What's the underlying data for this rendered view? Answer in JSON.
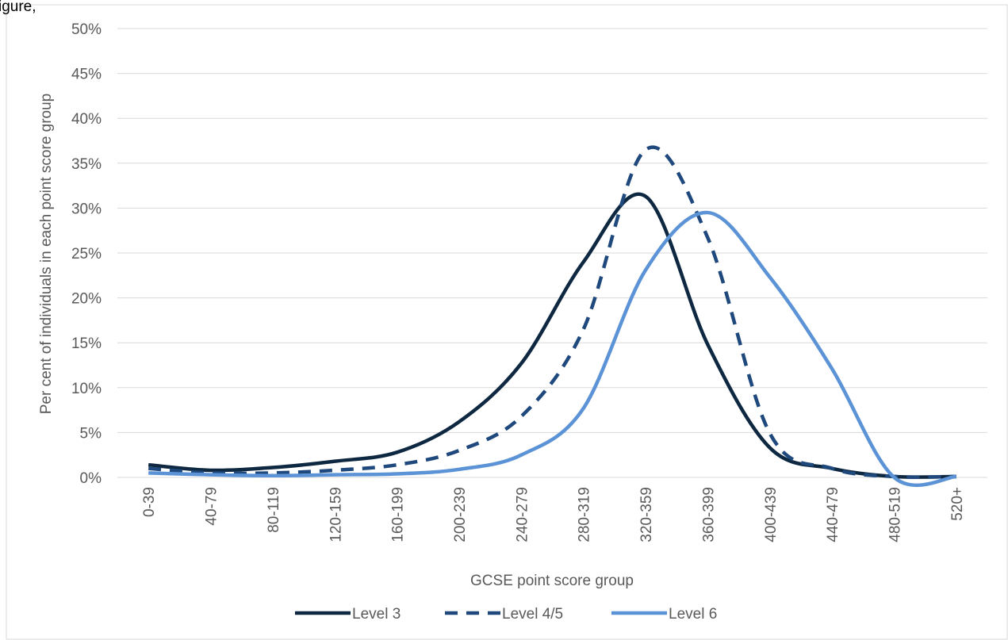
{
  "header_fragment": "igure,",
  "chart_data": {
    "type": "line",
    "y_label": "Per cent of individuals in each point score group",
    "x_label": "GCSE point score group",
    "categories": [
      "0-39",
      "40-79",
      "80-119",
      "120-159",
      "160-199",
      "200-239",
      "240-279",
      "280-319",
      "320-359",
      "360-399",
      "400-439",
      "440-479",
      "480-519",
      "520+"
    ],
    "series": [
      {
        "name": "Level 3",
        "color": "#0e2841",
        "dash": "solid",
        "values": [
          1.4,
          0.8,
          1.1,
          1.8,
          2.8,
          6.2,
          12.7,
          24,
          31.3,
          14.8,
          3.3,
          1,
          0.1,
          0.1
        ]
      },
      {
        "name": "Level 4/5",
        "color": "#1f497d",
        "dash": "dashed",
        "values": [
          1.0,
          0.5,
          0.5,
          0.8,
          1.4,
          3.0,
          6.8,
          16.5,
          36.5,
          26.7,
          4.9,
          1,
          0.1,
          0.1
        ]
      },
      {
        "name": "Level 6",
        "color": "#5b93d6",
        "dash": "solid",
        "values": [
          0.5,
          0.3,
          0.2,
          0.3,
          0.4,
          0.9,
          2.5,
          7.7,
          23.1,
          29.5,
          22.3,
          12.1,
          0,
          0.1
        ]
      }
    ],
    "ylim": [
      0,
      50
    ],
    "yticks": [
      {
        "value": 0,
        "label": "0%"
      },
      {
        "value": 5,
        "label": "5%"
      },
      {
        "value": 10,
        "label": "10%"
      },
      {
        "value": 15,
        "label": "15%"
      },
      {
        "value": 20,
        "label": "20%"
      },
      {
        "value": 25,
        "label": "25%"
      },
      {
        "value": 30,
        "label": "30%"
      },
      {
        "value": 35,
        "label": "35%"
      },
      {
        "value": 40,
        "label": "40%"
      },
      {
        "value": 45,
        "label": "45%"
      },
      {
        "value": 50,
        "label": "50%"
      }
    ],
    "grid": true,
    "legend": "bottom"
  }
}
